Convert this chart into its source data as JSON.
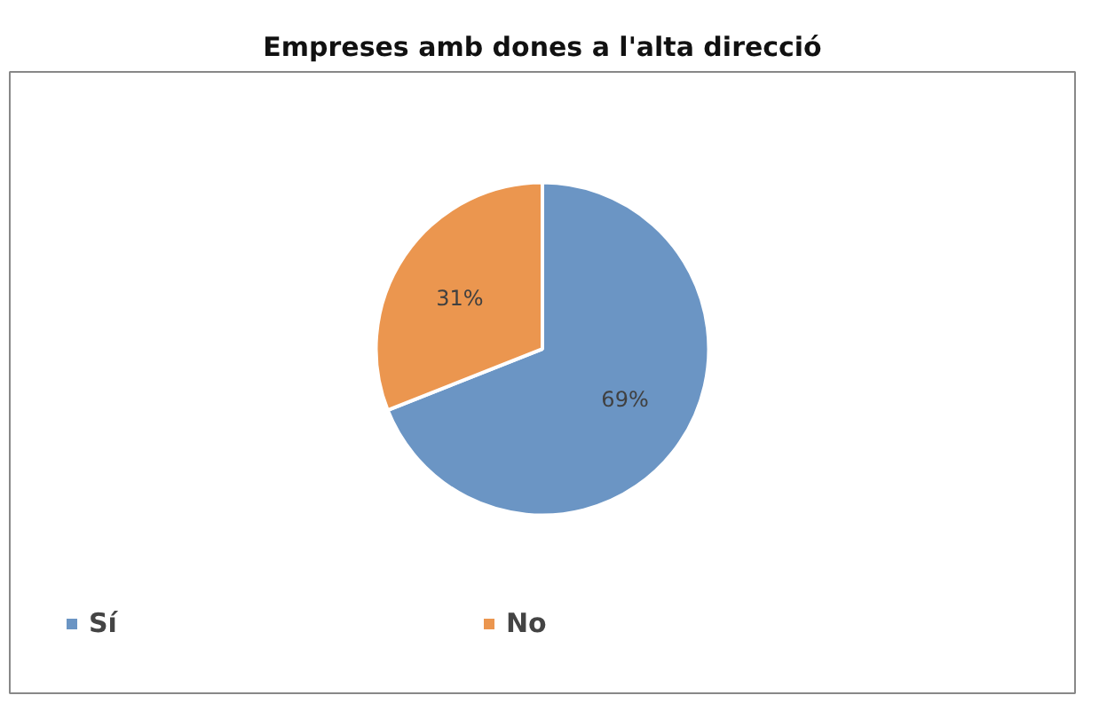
{
  "chart_data": {
    "type": "pie",
    "title": "Empreses amb dones a l'alta direcció",
    "categories": [
      "Sí",
      "No"
    ],
    "values": [
      69,
      31
    ],
    "colors": [
      "#6b95c4",
      "#eb964f"
    ],
    "value_labels": [
      "69%",
      "31%"
    ],
    "legend": "bottom"
  }
}
